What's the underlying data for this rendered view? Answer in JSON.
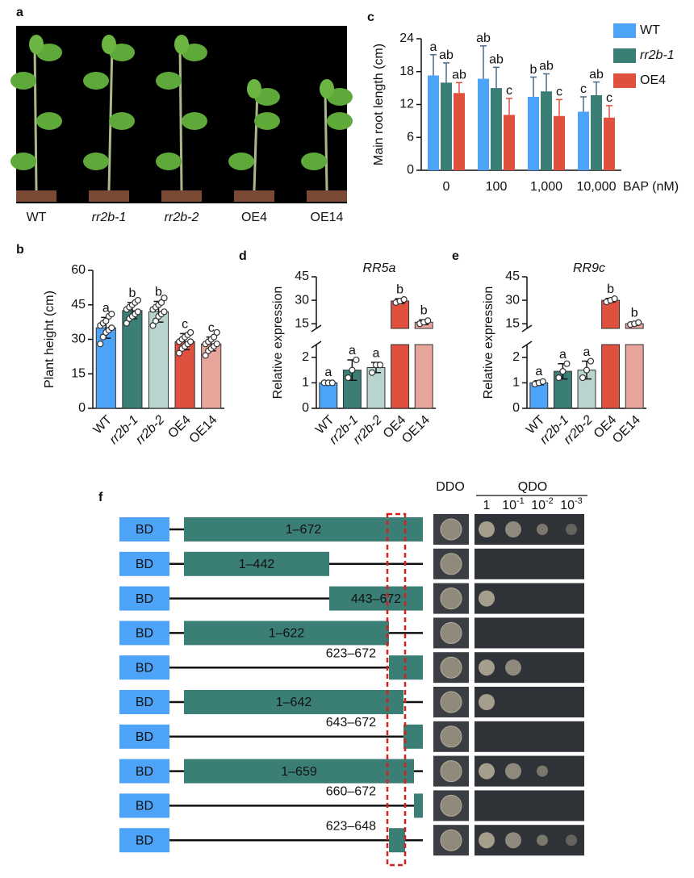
{
  "panel_a": {
    "label": "a",
    "genotypes": [
      "WT",
      "rr2b-1",
      "rr2b-2",
      "OE4",
      "OE14"
    ]
  },
  "chart_data": [
    {
      "panel": "c",
      "type": "bar",
      "ylabel": "Main root length (cm)",
      "xlabel": "BAP (nM)",
      "categories": [
        "0",
        "100",
        "1,000",
        "10,000"
      ],
      "ylim": [
        0,
        24
      ],
      "yticks": [
        0,
        6,
        12,
        18,
        24
      ],
      "legend": "top-right",
      "series": [
        {
          "name": "WT",
          "color": "#4da3f7",
          "values": [
            17.3,
            16.7,
            13.4,
            10.7
          ],
          "errors": [
            3.8,
            6.0,
            3.6,
            2.7
          ],
          "letters": [
            "a",
            "ab",
            "b",
            "c"
          ]
        },
        {
          "name": "rr2b-1",
          "color": "#3a7e76",
          "values": [
            16.0,
            15.0,
            14.4,
            13.7
          ],
          "errors": [
            3.6,
            3.8,
            3.2,
            2.4
          ],
          "letters": [
            "ab",
            "ab",
            "ab",
            "ab"
          ]
        },
        {
          "name": "OE4",
          "color": "#e0503f",
          "values": [
            14.1,
            10.1,
            9.9,
            9.6
          ],
          "errors": [
            1.9,
            3.0,
            3.0,
            2.2
          ],
          "letters": [
            "ab",
            "c",
            "c",
            "c"
          ]
        }
      ]
    },
    {
      "panel": "b",
      "type": "bar",
      "ylabel": "Plant height (cm)",
      "categories": [
        "WT",
        "rr2b-1",
        "rr2b-2",
        "OE4",
        "OE14"
      ],
      "ylim": [
        0,
        60
      ],
      "yticks": [
        0,
        15,
        30,
        45,
        60
      ],
      "values": [
        35,
        42.5,
        42,
        29,
        28
      ],
      "errors": [
        4.5,
        3.5,
        4.5,
        3.5,
        3
      ],
      "colors": [
        "#4da3f7",
        "#3a7e76",
        "#b9d4cf",
        "#e0503f",
        "#e8a59c"
      ],
      "letters": [
        "a",
        "b",
        "b",
        "c",
        "c"
      ],
      "points": [
        [
          28,
          31,
          33,
          34,
          35,
          36,
          37,
          38,
          40,
          41
        ],
        [
          37,
          39,
          40,
          41,
          42,
          43,
          44,
          45,
          46,
          47
        ],
        [
          36,
          38,
          40,
          41,
          42,
          43,
          44,
          45,
          46,
          48
        ],
        [
          24,
          26,
          27,
          28,
          29,
          29,
          30,
          31,
          32,
          33
        ],
        [
          23,
          25,
          26,
          27,
          28,
          28,
          29,
          30,
          31,
          33
        ]
      ]
    },
    {
      "panel": "d",
      "type": "bar",
      "title": "RR5a",
      "ylabel": "Relative expression",
      "categories": [
        "WT",
        "rr2b-1",
        "rr2b-2",
        "OE4",
        "OE14"
      ],
      "ylim": [
        0,
        45
      ],
      "ybreak": [
        2.5,
        12
      ],
      "yticks": [
        0,
        1,
        2,
        15,
        30,
        45
      ],
      "values": [
        1.0,
        1.5,
        1.6,
        29.5,
        16
      ],
      "errors": [
        0.05,
        0.4,
        0.2,
        1.5,
        1.5
      ],
      "colors": [
        "#4da3f7",
        "#3a7e76",
        "#b9d4cf",
        "#e0503f",
        "#e8a59c"
      ],
      "letters": [
        "a",
        "a",
        "a",
        "b",
        "b"
      ],
      "points": [
        [
          1.0,
          1.0,
          1.0
        ],
        [
          1.2,
          1.5,
          1.9
        ],
        [
          1.4,
          1.7,
          1.7
        ],
        [
          28.5,
          29.5,
          30.5
        ],
        [
          15,
          16,
          17
        ]
      ]
    },
    {
      "panel": "e",
      "type": "bar",
      "title": "RR9c",
      "ylabel": "Relative expression",
      "categories": [
        "WT",
        "rr2b-1",
        "rr2b-2",
        "OE4",
        "OE14"
      ],
      "ylim": [
        0,
        45
      ],
      "ybreak": [
        2.5,
        12
      ],
      "yticks": [
        0,
        1,
        2,
        15,
        30,
        45
      ],
      "values": [
        1.0,
        1.45,
        1.5,
        30,
        15
      ],
      "errors": [
        0.08,
        0.3,
        0.35,
        1.2,
        1.0
      ],
      "colors": [
        "#4da3f7",
        "#3a7e76",
        "#b9d4cf",
        "#e0503f",
        "#e8a59c"
      ],
      "letters": [
        "a",
        "a",
        "a",
        "b",
        "b"
      ],
      "points": [
        [
          0.95,
          1.0,
          1.05
        ],
        [
          1.2,
          1.45,
          1.75
        ],
        [
          1.2,
          1.5,
          1.85
        ],
        [
          29,
          30,
          31
        ],
        [
          14.5,
          15,
          15.8
        ]
      ]
    }
  ],
  "panel_f": {
    "label": "f",
    "ddo": "DDO",
    "qdo": "QDO",
    "dilutions": [
      {
        "base": "1"
      },
      {
        "base": "10",
        "exp": "-1"
      },
      {
        "base": "10",
        "exp": "-2"
      },
      {
        "base": "10",
        "exp": "-3"
      }
    ],
    "constructs": [
      {
        "domain": "BD",
        "range": "1–672"
      },
      {
        "domain": "BD",
        "range": "1–442"
      },
      {
        "domain": "BD",
        "range": "443–672"
      },
      {
        "domain": "BD",
        "range": "1–622"
      },
      {
        "domain": "BD",
        "range": "623–672"
      },
      {
        "domain": "BD",
        "range": "1–642"
      },
      {
        "domain": "BD",
        "range": "643–672"
      },
      {
        "domain": "BD",
        "range": "1–659"
      },
      {
        "domain": "BD",
        "range": "660–672"
      },
      {
        "domain": "BD",
        "range": "623–648"
      }
    ]
  }
}
